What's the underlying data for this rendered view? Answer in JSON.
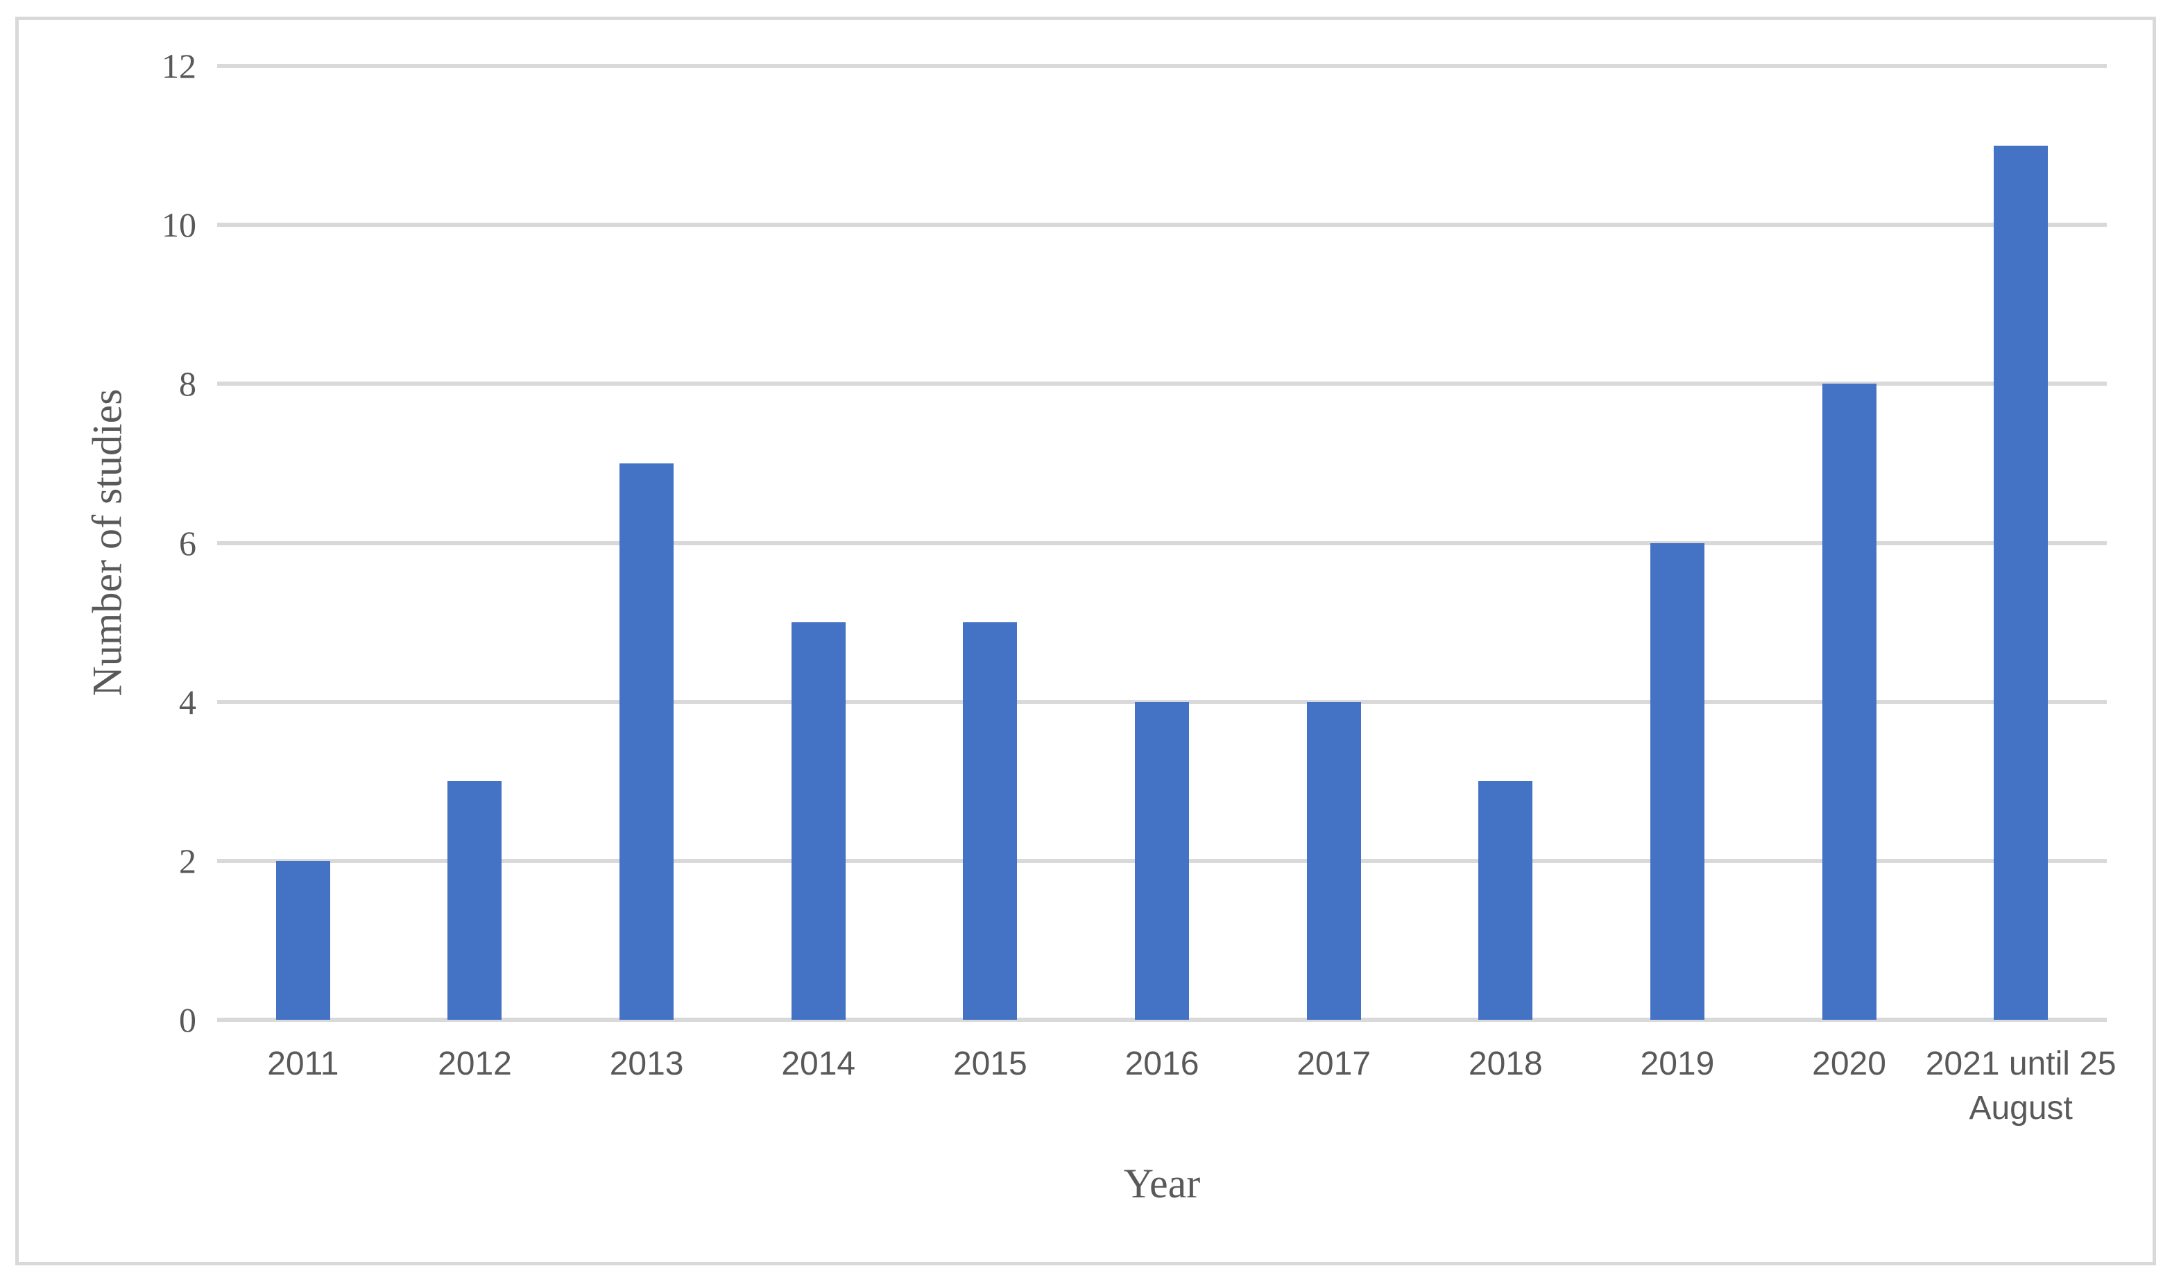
{
  "chart_data": {
    "type": "bar",
    "title": "",
    "categories": [
      "2011",
      "2012",
      "2013",
      "2014",
      "2015",
      "2016",
      "2017",
      "2018",
      "2019",
      "2020",
      "2021 until 25 August"
    ],
    "values": [
      2,
      3,
      7,
      5,
      5,
      4,
      4,
      3,
      6,
      8,
      11
    ],
    "xlabel": "Year",
    "ylabel": "Number of studies",
    "yticks": [
      0,
      2,
      4,
      6,
      8,
      10,
      12
    ],
    "ylim": [
      0,
      12
    ],
    "grid": true,
    "legend": false,
    "colors": {
      "bar": "#4472C4",
      "gridline": "#D9D9D9",
      "axis_line": "#D9D9D9",
      "text": "#595959",
      "frame_border": "#D9D9D9"
    }
  }
}
